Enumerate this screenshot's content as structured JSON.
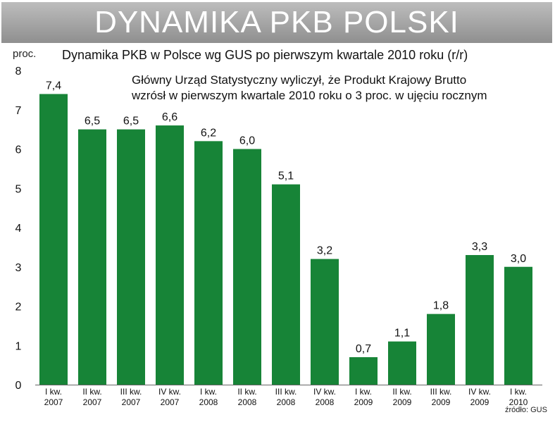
{
  "banner_title": "DYNAMIKA PKB POLSKI",
  "subtitle": "Dynamika PKB w Polsce wg GUS po pierwszym kwartale 2010 roku (r/r)",
  "y_unit": "proc.",
  "annotation": [
    "Główny Urząd Statystyczny wyliczył, że Produkt Krajowy Brutto",
    "wzrósł w pierwszym kwartale 2010 roku o 3 proc. w ujęciu rocznym"
  ],
  "source": "źródło: GUS",
  "colors": {
    "bar": "#178437",
    "banner": "#a6a6a6",
    "text": "#111111"
  },
  "chart_data": {
    "type": "bar",
    "title": "Dynamika PKB w Polsce wg GUS po pierwszym kwartale 2010 roku (r/r)",
    "ylabel": "proc.",
    "ylim": [
      0,
      8
    ],
    "yticks": [
      "0",
      "1",
      "2",
      "3",
      "4",
      "5",
      "6",
      "7",
      "8"
    ],
    "grid": false,
    "categories": [
      [
        "I kw.",
        "2007"
      ],
      [
        "II kw.",
        "2007"
      ],
      [
        "III kw.",
        "2007"
      ],
      [
        "IV kw.",
        "2007"
      ],
      [
        "I kw.",
        "2008"
      ],
      [
        "II kw.",
        "2008"
      ],
      [
        "III kw.",
        "2008"
      ],
      [
        "IV kw.",
        "2008"
      ],
      [
        "I kw.",
        "2009"
      ],
      [
        "II kw.",
        "2009"
      ],
      [
        "III kw.",
        "2009"
      ],
      [
        "IV kw.",
        "2009"
      ],
      [
        "I kw.",
        "2010"
      ]
    ],
    "values": [
      7.4,
      6.5,
      6.5,
      6.6,
      6.2,
      6.0,
      5.1,
      3.2,
      0.7,
      1.1,
      1.8,
      3.3,
      3.0
    ],
    "value_labels": [
      "7,4",
      "6,5",
      "6,5",
      "6,6",
      "6,2",
      "6,0",
      "5,1",
      "3,2",
      "0,7",
      "1,1",
      "1,8",
      "3,3",
      "3,0"
    ]
  }
}
